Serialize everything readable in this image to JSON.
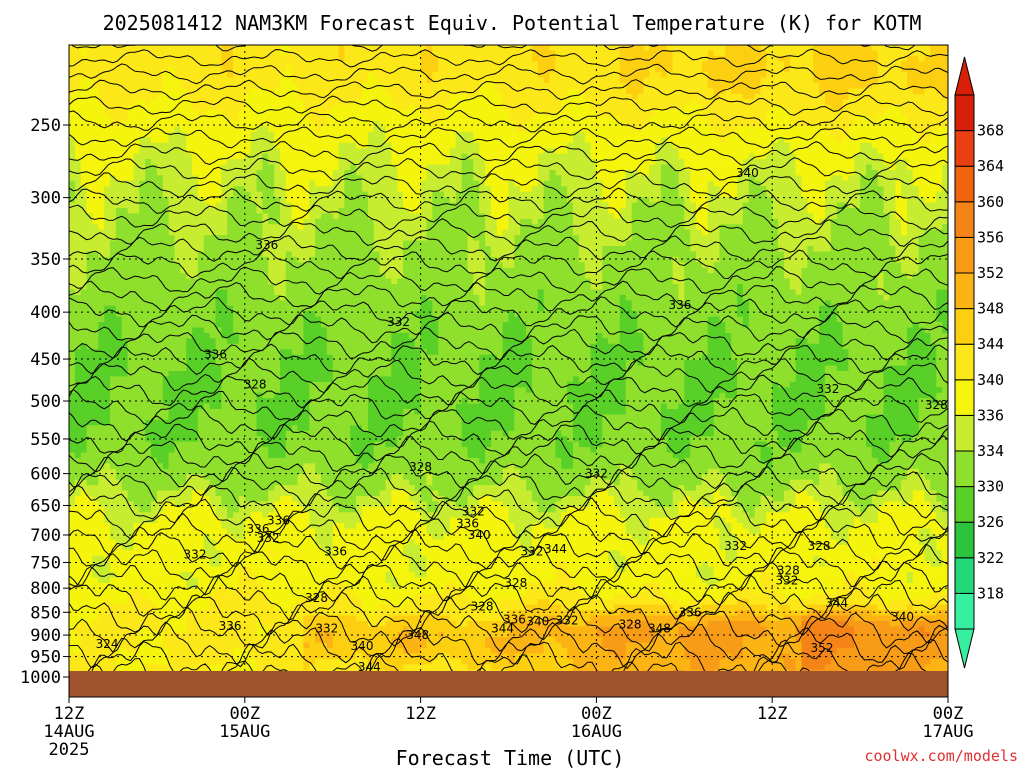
{
  "chart_data": {
    "type": "heatmap",
    "title": "2025081412 NAM3KM Forecast Equiv. Potential Temperature (K) for KOTM",
    "xlabel": "Forecast Time (UTC)",
    "ylabel": "",
    "x_ticks": [
      {
        "hour": 0,
        "l1": "12Z",
        "l2": "14AUG",
        "l3": "2025"
      },
      {
        "hour": 12,
        "l1": "00Z",
        "l2": "15AUG",
        "l3": ""
      },
      {
        "hour": 24,
        "l1": "12Z",
        "l2": "",
        "l3": ""
      },
      {
        "hour": 36,
        "l1": "00Z",
        "l2": "16AUG",
        "l3": ""
      },
      {
        "hour": 48,
        "l1": "12Z",
        "l2": "",
        "l3": ""
      },
      {
        "hour": 60,
        "l1": "00Z",
        "l2": "17AUG",
        "l3": ""
      }
    ],
    "xlim": [
      0,
      60
    ],
    "y_ticks": [
      250,
      300,
      350,
      400,
      450,
      500,
      550,
      600,
      650,
      700,
      750,
      800,
      850,
      900,
      950,
      1000
    ],
    "ylim": [
      200,
      1000
    ],
    "y_scale": "log-pressure",
    "grid": true,
    "surface_color": "#a0522d",
    "colorbar": {
      "levels": [
        318,
        322,
        326,
        330,
        334,
        336,
        340,
        344,
        348,
        352,
        356,
        360,
        364,
        368
      ],
      "colors": [
        "#36f0a0",
        "#22d878",
        "#2cc43c",
        "#58d028",
        "#8ee02c",
        "#c8ec30",
        "#f4f40c",
        "#fce818",
        "#fcd010",
        "#fcb414",
        "#f89c18",
        "#f48418",
        "#f06410",
        "#e84010",
        "#d82008"
      ],
      "position": "right"
    },
    "contour_labels": [
      {
        "t": 2.6,
        "p": 920,
        "v": "324"
      },
      {
        "t": 10.0,
        "p": 445,
        "v": "336"
      },
      {
        "t": 13.5,
        "p": 338,
        "v": "336"
      },
      {
        "t": 12.7,
        "p": 480,
        "v": "328"
      },
      {
        "t": 14.3,
        "p": 675,
        "v": "336"
      },
      {
        "t": 12.9,
        "p": 690,
        "v": "336"
      },
      {
        "t": 13.6,
        "p": 705,
        "v": "332"
      },
      {
        "t": 8.6,
        "p": 735,
        "v": "332"
      },
      {
        "t": 16.9,
        "p": 820,
        "v": "328"
      },
      {
        "t": 17.6,
        "p": 885,
        "v": "332"
      },
      {
        "t": 18.2,
        "p": 730,
        "v": "336"
      },
      {
        "t": 11.0,
        "p": 880,
        "v": "336"
      },
      {
        "t": 22.5,
        "p": 410,
        "v": "332"
      },
      {
        "t": 24.0,
        "p": 590,
        "v": "328"
      },
      {
        "t": 20.0,
        "p": 925,
        "v": "340"
      },
      {
        "t": 20.5,
        "p": 975,
        "v": "344"
      },
      {
        "t": 23.8,
        "p": 900,
        "v": "348"
      },
      {
        "t": 27.6,
        "p": 660,
        "v": "332"
      },
      {
        "t": 27.2,
        "p": 680,
        "v": "336"
      },
      {
        "t": 28.0,
        "p": 700,
        "v": "340"
      },
      {
        "t": 28.2,
        "p": 838,
        "v": "328"
      },
      {
        "t": 30.5,
        "p": 790,
        "v": "328"
      },
      {
        "t": 31.6,
        "p": 730,
        "v": "332"
      },
      {
        "t": 33.2,
        "p": 725,
        "v": "344"
      },
      {
        "t": 30.4,
        "p": 865,
        "v": "336"
      },
      {
        "t": 32.0,
        "p": 870,
        "v": "340"
      },
      {
        "t": 29.6,
        "p": 885,
        "v": "344"
      },
      {
        "t": 34.0,
        "p": 868,
        "v": "332"
      },
      {
        "t": 36.0,
        "p": 600,
        "v": "332"
      },
      {
        "t": 46.3,
        "p": 282,
        "v": "340"
      },
      {
        "t": 41.7,
        "p": 393,
        "v": "336"
      },
      {
        "t": 38.3,
        "p": 876,
        "v": "328"
      },
      {
        "t": 40.3,
        "p": 885,
        "v": "348"
      },
      {
        "t": 42.4,
        "p": 850,
        "v": "336"
      },
      {
        "t": 45.5,
        "p": 720,
        "v": "332"
      },
      {
        "t": 49.1,
        "p": 765,
        "v": "328"
      },
      {
        "t": 49.0,
        "p": 785,
        "v": "332"
      },
      {
        "t": 51.2,
        "p": 720,
        "v": "328"
      },
      {
        "t": 51.8,
        "p": 485,
        "v": "332"
      },
      {
        "t": 59.2,
        "p": 505,
        "v": "328"
      },
      {
        "t": 52.4,
        "p": 830,
        "v": "344"
      },
      {
        "t": 56.9,
        "p": 860,
        "v": "340"
      },
      {
        "t": 51.4,
        "p": 930,
        "v": "352"
      }
    ]
  },
  "footer": {
    "credit": "coolwx.com/models"
  }
}
